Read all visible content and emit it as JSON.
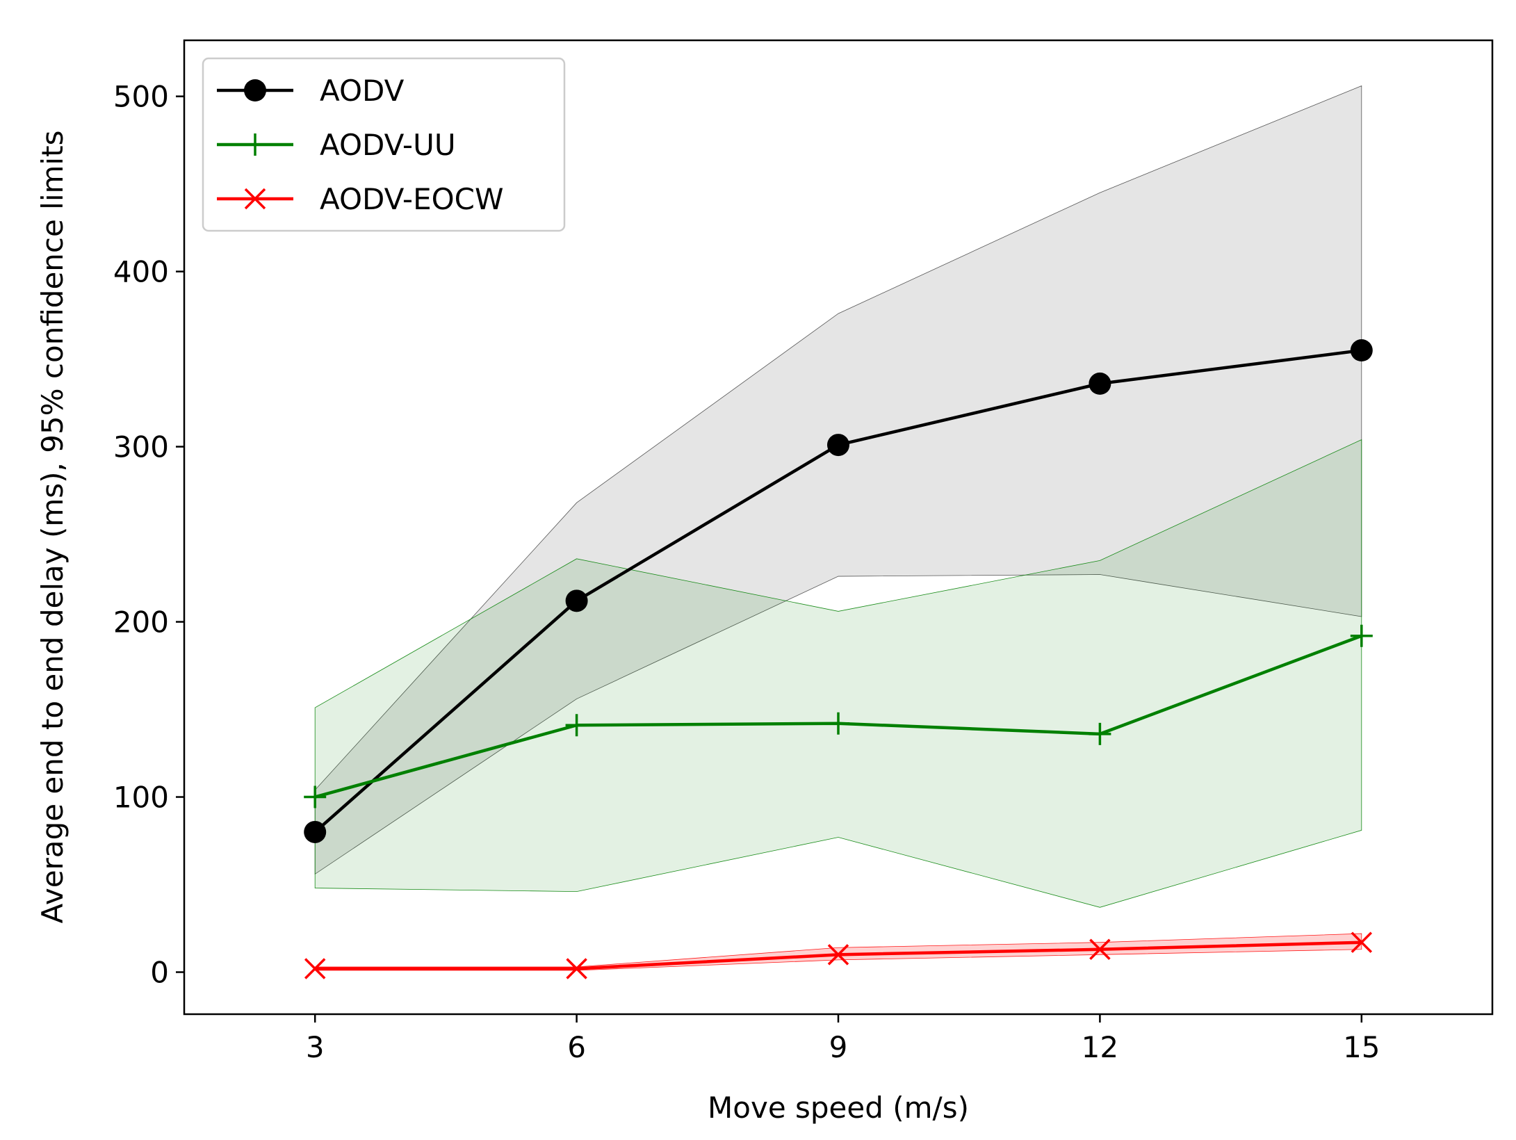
{
  "chart_data": {
    "type": "line",
    "title": "",
    "xlabel": "Move speed (m/s)",
    "ylabel": "Average end to end delay (ms), 95% confidence limits",
    "x": [
      3,
      6,
      9,
      12,
      15
    ],
    "xlim": [
      1.5,
      16.5
    ],
    "ylim": [
      -24,
      532
    ],
    "xticks": [
      3,
      6,
      9,
      12,
      15
    ],
    "yticks": [
      0,
      100,
      200,
      300,
      400,
      500
    ],
    "grid": false,
    "legend_position": "top-left",
    "series": [
      {
        "name": "AODV",
        "color": "#000000",
        "marker": "circle",
        "values": [
          80,
          212,
          301,
          336,
          355
        ],
        "lower": [
          56,
          156,
          226,
          227,
          203
        ],
        "upper": [
          104,
          268,
          376,
          445,
          506
        ]
      },
      {
        "name": "AODV-UU",
        "color": "#008000",
        "marker": "plus",
        "values": [
          100,
          141,
          142,
          136,
          192
        ],
        "lower": [
          48,
          46,
          77,
          37,
          81
        ],
        "upper": [
          151,
          236,
          206,
          235,
          304
        ]
      },
      {
        "name": "AODV-EOCW",
        "color": "#ff0000",
        "marker": "x",
        "values": [
          2,
          2,
          10,
          13,
          17
        ],
        "lower": [
          1,
          1,
          7,
          10,
          13
        ],
        "upper": [
          3,
          3,
          14,
          17,
          22
        ]
      }
    ]
  }
}
